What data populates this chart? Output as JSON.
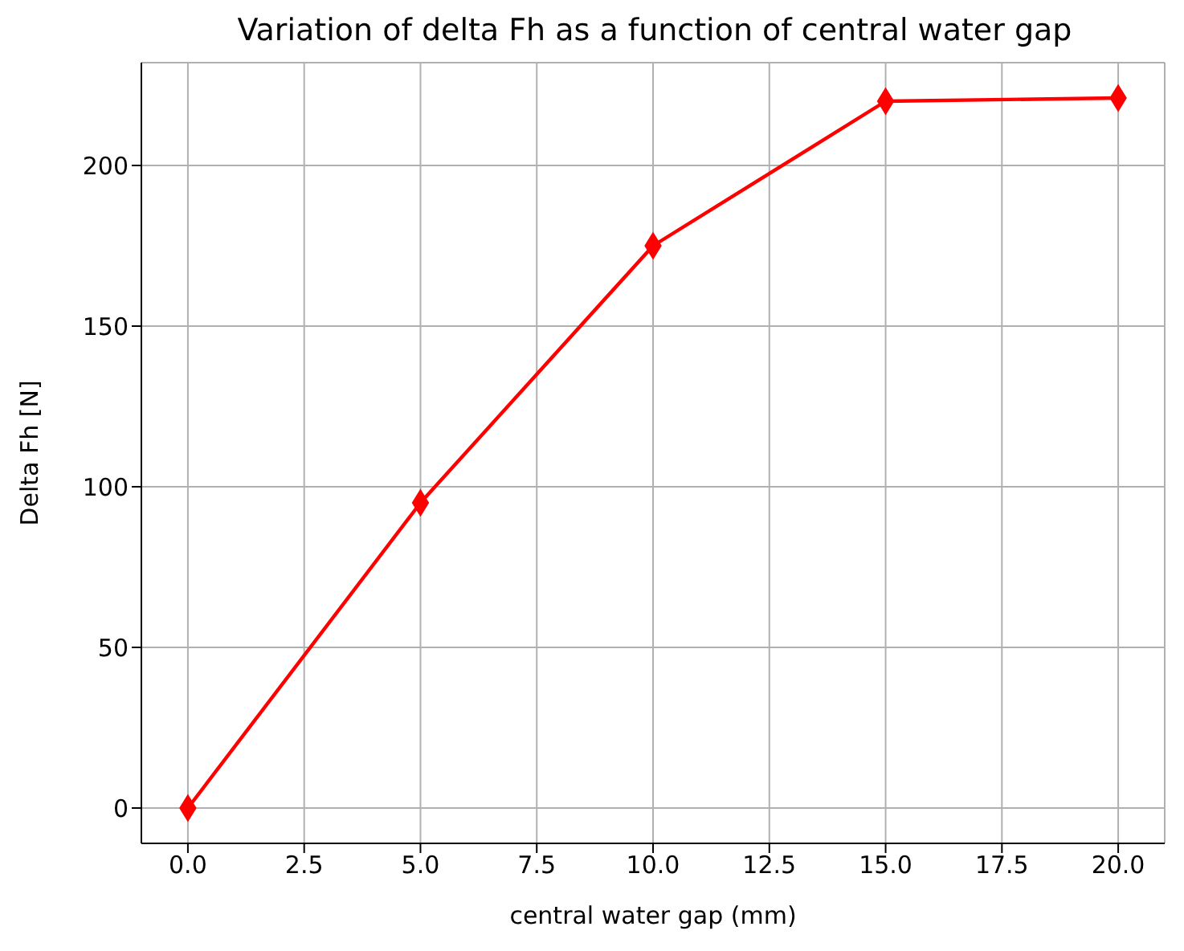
{
  "chart_data": {
    "type": "line",
    "title": "Variation of delta Fh as a function of central water gap",
    "xlabel": "central water gap (mm)",
    "ylabel": "Delta Fh [N]",
    "x": [
      0,
      5,
      10,
      15,
      20
    ],
    "series": [
      {
        "color": "#ff0000",
        "values": [
          0,
          95,
          175,
          220,
          221
        ]
      }
    ],
    "xlim": [
      -1,
      21
    ],
    "xticks": [
      {
        "value": 0,
        "label": "0.0"
      },
      {
        "value": 2.5,
        "label": "2.5"
      },
      {
        "value": 5,
        "label": "5.0"
      },
      {
        "value": 7.5,
        "label": "7.5"
      },
      {
        "value": 10,
        "label": "10.0"
      },
      {
        "value": 12.5,
        "label": "12.5"
      },
      {
        "value": 15,
        "label": "15.0"
      },
      {
        "value": 17.5,
        "label": "17.5"
      },
      {
        "value": 20,
        "label": "20.0"
      }
    ],
    "ylim": [
      -11,
      232
    ],
    "yticks": [
      0,
      50,
      100,
      150,
      200
    ],
    "grid": true,
    "marker": "diamond",
    "line_style": "solid"
  }
}
